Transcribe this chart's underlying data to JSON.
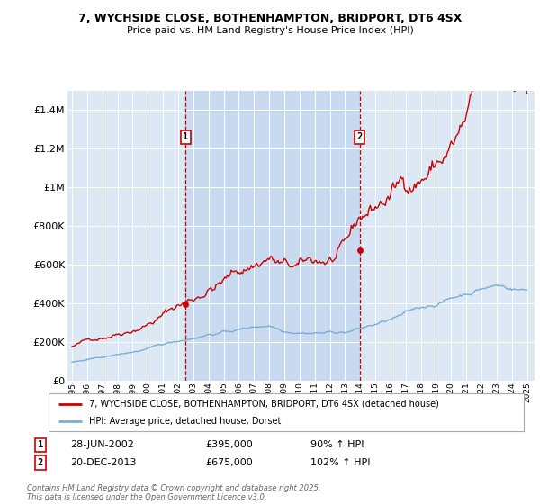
{
  "title1": "7, WYCHSIDE CLOSE, BOTHENHAMPTON, BRIDPORT, DT6 4SX",
  "title2": "Price paid vs. HM Land Registry's House Price Index (HPI)",
  "background_color": "#dce9f5",
  "plot_bg_color": "#dce9f5",
  "highlight_bg": "#c8daf0",
  "legend_label_red": "7, WYCHSIDE CLOSE, BOTHENHAMPTON, BRIDPORT, DT6 4SX (detached house)",
  "legend_label_blue": "HPI: Average price, detached house, Dorset",
  "footer": "Contains HM Land Registry data © Crown copyright and database right 2025.\nThis data is licensed under the Open Government Licence v3.0.",
  "sale1_date": "28-JUN-2002",
  "sale1_price": 395000,
  "sale1_pct": "90% ↑ HPI",
  "sale2_date": "20-DEC-2013",
  "sale2_price": 675000,
  "sale2_pct": "102% ↑ HPI",
  "red_color": "#cc0000",
  "blue_color": "#7aadd4",
  "dashed_color": "#cc0000",
  "ylim": [
    0,
    1500000
  ],
  "yticks": [
    0,
    200000,
    400000,
    600000,
    800000,
    1000000,
    1200000,
    1400000
  ],
  "xlim_start": 1994.7,
  "xlim_end": 2025.5,
  "sale1_year": 2002.49,
  "sale2_year": 2013.97
}
